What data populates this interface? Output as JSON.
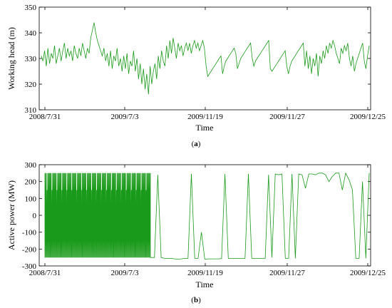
{
  "chart_data": [
    {
      "type": "line",
      "panel_label": "a",
      "xlabel": "Time",
      "ylabel": "Working head (m)",
      "ylim": [
        310,
        350
      ],
      "y_ticks": [
        310,
        320,
        330,
        340,
        350
      ],
      "x_tick_labels": [
        "2008/7/31",
        "2009/7/3",
        "2009/11/19",
        "2009/11/27",
        "2009/12/25"
      ],
      "line_color": "#1a9a1a",
      "grid": false,
      "series": [
        {
          "values": [
            331,
            329,
            333,
            327,
            334,
            328,
            332,
            330,
            335,
            328,
            331,
            334,
            329,
            333,
            336,
            330,
            334,
            331,
            333,
            329,
            335,
            332,
            330,
            334,
            331,
            336,
            333,
            330,
            334,
            332,
            338,
            341,
            344,
            340,
            337,
            335,
            333,
            331,
            334,
            329,
            332,
            327,
            333,
            326,
            331,
            329,
            334,
            327,
            330,
            325,
            331,
            326,
            332,
            324,
            329,
            327,
            333,
            325,
            330,
            322,
            328,
            320,
            326,
            318,
            324,
            316,
            327,
            320,
            325,
            328,
            322,
            331,
            326,
            333,
            329,
            327,
            335,
            330,
            337,
            332,
            338,
            334,
            330,
            336,
            333,
            335,
            331,
            334,
            336,
            333,
            336,
            332,
            335,
            337,
            334,
            336,
            333,
            335,
            337,
            334,
            327,
            323,
            324,
            325,
            326,
            327,
            328,
            329,
            330,
            331,
            324,
            327,
            329,
            330,
            331,
            332,
            333,
            334,
            332,
            326,
            328,
            330,
            331,
            332,
            333,
            334,
            335,
            336,
            330,
            327,
            329,
            330,
            331,
            332,
            333,
            334,
            335,
            336,
            337,
            326,
            325,
            326,
            327,
            328,
            329,
            330,
            331,
            332,
            333,
            327,
            324,
            327,
            329,
            330,
            331,
            332,
            333,
            334,
            335,
            336,
            327,
            333,
            326,
            331,
            324,
            330,
            327,
            332,
            323,
            331,
            328,
            333,
            330,
            335,
            332,
            336,
            334,
            337,
            335,
            332,
            330,
            328,
            334,
            332,
            335,
            333,
            336,
            330,
            327,
            331,
            325,
            328,
            330,
            332,
            334,
            336,
            329,
            326,
            331,
            335
          ]
        }
      ]
    },
    {
      "type": "line",
      "panel_label": "b",
      "xlabel": "Time",
      "ylabel": "Active power (MW)",
      "ylim": [
        -300,
        300
      ],
      "y_ticks": [
        -300,
        -200,
        -100,
        0,
        100,
        200,
        300
      ],
      "x_tick_labels": [
        "2008/7/31",
        "2009/7/3",
        "2009/11/19",
        "2009/11/27",
        "2009/12/25"
      ],
      "line_color": "#1a9a1a",
      "grid": false,
      "dense_switching": {
        "upper_level": 250,
        "lower_level": -250,
        "mid_level": 150,
        "segment_count": 150,
        "description_levels": [
          250,
          -250,
          150
        ]
      },
      "series": [
        {
          "values_after_dense": [
            -250,
            240,
            -250,
            -255,
            -255,
            -255,
            -258,
            -260,
            -258,
            -255,
            -255,
            245,
            -255,
            -255,
            -100,
            -260,
            -258,
            -258,
            -258,
            -258,
            -256,
            245,
            -255,
            -255,
            -255,
            -255,
            -255,
            -255,
            245,
            -255,
            -255,
            -255,
            -255,
            -255,
            240,
            -250,
            245,
            240,
            245,
            -255,
            -255,
            245,
            -255,
            245,
            240,
            160,
            245,
            245,
            240,
            250,
            250,
            240,
            200,
            230,
            250,
            250,
            150,
            250,
            210,
            150,
            -255,
            -255,
            200,
            -255,
            250
          ]
        }
      ]
    }
  ]
}
